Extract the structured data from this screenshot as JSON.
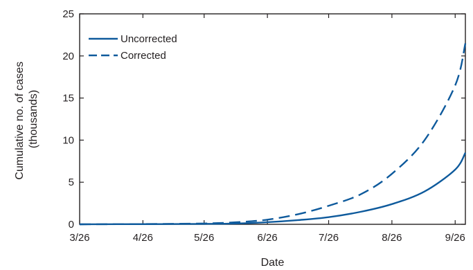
{
  "chart_data": {
    "type": "line",
    "title": "",
    "xlabel": "Date",
    "ylabel": [
      "Cumulative no. of cases",
      "(thousands)"
    ],
    "x_ticks": [
      "3/26",
      "4/26",
      "5/26",
      "6/26",
      "7/26",
      "8/26",
      "9/26"
    ],
    "y_ticks": [
      0,
      5,
      10,
      15,
      20,
      25
    ],
    "xlim": [
      "2014-03-26",
      "2014-10-01"
    ],
    "ylim": [
      0,
      25
    ],
    "grid": false,
    "legend_position": "top-left",
    "line_color": "#0e5a9c",
    "x": [
      "2014-03-26",
      "2014-04-26",
      "2014-05-26",
      "2014-06-11",
      "2014-06-26",
      "2014-07-11",
      "2014-07-26",
      "2014-08-11",
      "2014-08-26",
      "2014-09-11",
      "2014-09-26",
      "2014-10-01"
    ],
    "series": [
      {
        "name": "Uncorrected",
        "style": "solid",
        "values": [
          0.0,
          0.02,
          0.05,
          0.1,
          0.25,
          0.5,
          0.85,
          1.5,
          2.4,
          3.9,
          6.5,
          8.5
        ]
      },
      {
        "name": "Corrected",
        "style": "dashed",
        "values": [
          0.0,
          0.03,
          0.1,
          0.25,
          0.55,
          1.2,
          2.2,
          3.6,
          6.0,
          10.0,
          16.5,
          21.5
        ]
      }
    ]
  }
}
